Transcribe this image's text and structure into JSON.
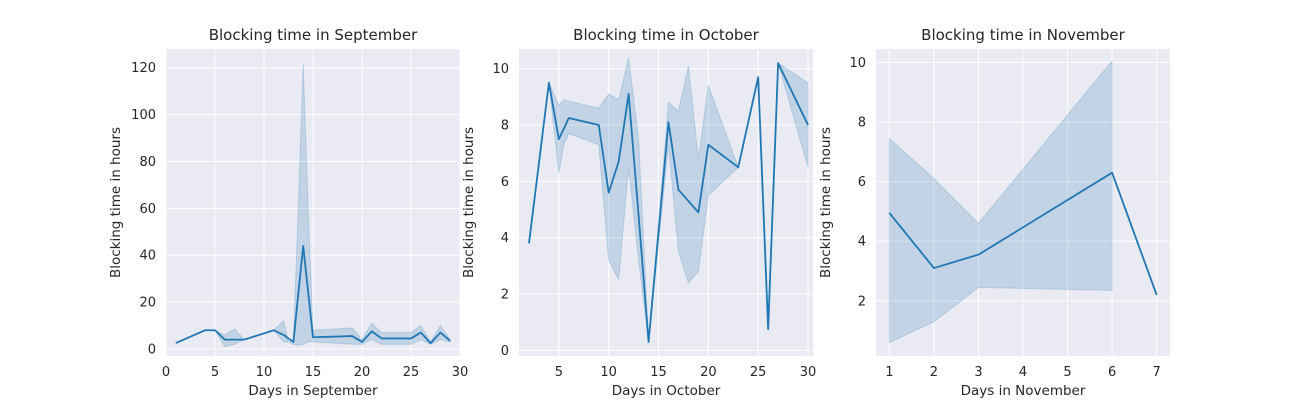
{
  "colors": {
    "plot_bg": "#eaeaf2",
    "grid": "#ffffff",
    "line": "#1f77b4",
    "band": "#1f77b4",
    "text": "#262626"
  },
  "chart_data": [
    {
      "type": "line",
      "title": "Blocking time in September",
      "xlabel": "Days in September",
      "ylabel": "Blocking time in hours",
      "xlim": [
        0,
        30
      ],
      "ylim": [
        -3,
        128
      ],
      "xticks": [
        0,
        5,
        10,
        15,
        20,
        25,
        30
      ],
      "yticks": [
        0,
        20,
        40,
        60,
        80,
        100,
        120
      ],
      "grid": true,
      "series": [
        {
          "x": [
            1,
            4,
            5,
            6,
            8,
            11,
            12,
            13,
            14,
            15,
            19,
            20,
            21,
            22,
            25,
            26,
            27,
            28,
            29
          ],
          "y": [
            2.5,
            8,
            8,
            4,
            4,
            8,
            6,
            3,
            44,
            5,
            5.5,
            3,
            7.5,
            4.5,
            4.5,
            7,
            2.5,
            7,
            3.5
          ],
          "ci_x": [
            1,
            4,
            5,
            6,
            7,
            8,
            11,
            12,
            12.5,
            13,
            13.5,
            14,
            14.5,
            15,
            19,
            20,
            21,
            22,
            25,
            26,
            27,
            28,
            29
          ],
          "ci_low": [
            2.5,
            8,
            8,
            1,
            2,
            4,
            8,
            3,
            3,
            2,
            1.5,
            2,
            3,
            3,
            2,
            2,
            4,
            2,
            2,
            4,
            2,
            4,
            3
          ],
          "ci_high": [
            2.5,
            8,
            8,
            6,
            8.5,
            4,
            8,
            12,
            3,
            4,
            60,
            122,
            60,
            8,
            9,
            4,
            11,
            7,
            7,
            10,
            3,
            10,
            4
          ]
        }
      ]
    },
    {
      "type": "line",
      "title": "Blocking time in October",
      "xlabel": "Days in October",
      "ylabel": "Blocking time in hours",
      "xlim": [
        1.0,
        30.5
      ],
      "ylim": [
        -0.2,
        10.7
      ],
      "xticks": [
        5,
        10,
        15,
        20,
        25,
        30
      ],
      "yticks": [
        0,
        2,
        4,
        6,
        8,
        10
      ],
      "grid": true,
      "series": [
        {
          "x": [
            2,
            4,
            5,
            6,
            9,
            10,
            11,
            12,
            13,
            14,
            16,
            17,
            18,
            19,
            20,
            23,
            25,
            26,
            27,
            30
          ],
          "y": [
            3.8,
            9.5,
            7.5,
            8.25,
            8,
            5.6,
            6.7,
            9.1,
            4.8,
            0.3,
            8.1,
            5.7,
            5.3,
            4.9,
            7.3,
            6.5,
            9.7,
            0.75,
            10.2,
            8
          ],
          "ci_x": [
            2,
            4,
            5,
            5.5,
            6,
            9,
            10,
            11,
            12,
            13,
            14,
            16,
            17,
            18,
            19,
            20,
            23,
            25,
            26,
            27,
            30
          ],
          "ci_low": [
            3.8,
            9.5,
            6.3,
            7.3,
            7.7,
            7.3,
            3.2,
            2.5,
            6.5,
            3.2,
            0.3,
            7.3,
            3.5,
            2.4,
            2.8,
            5.5,
            6.5,
            9.7,
            0.75,
            10.2,
            6.5
          ],
          "ci_high": [
            3.8,
            9.5,
            8.7,
            8.9,
            8.85,
            8.6,
            9.1,
            8.9,
            10.4,
            7.5,
            0.3,
            8.8,
            8.5,
            10.1,
            6.8,
            9.4,
            6.5,
            9.7,
            0.75,
            10.2,
            9.5
          ]
        }
      ]
    },
    {
      "type": "line",
      "title": "Blocking time in November",
      "xlabel": "Days in November",
      "ylabel": "Blocking time in hours",
      "xlim": [
        0.7,
        7.3
      ],
      "ylim": [
        0.15,
        10.45
      ],
      "xticks": [
        1,
        2,
        3,
        4,
        5,
        6,
        7
      ],
      "yticks": [
        2,
        4,
        6,
        8,
        10
      ],
      "grid": true,
      "series": [
        {
          "x": [
            1,
            2,
            3,
            6,
            7
          ],
          "y": [
            4.95,
            3.1,
            3.55,
            6.3,
            2.2
          ],
          "ci_x": [
            1,
            2,
            3,
            6
          ],
          "ci_low": [
            0.6,
            1.3,
            2.45,
            2.35
          ],
          "ci_high": [
            7.45,
            6.1,
            4.6,
            10.05
          ]
        }
      ]
    }
  ]
}
